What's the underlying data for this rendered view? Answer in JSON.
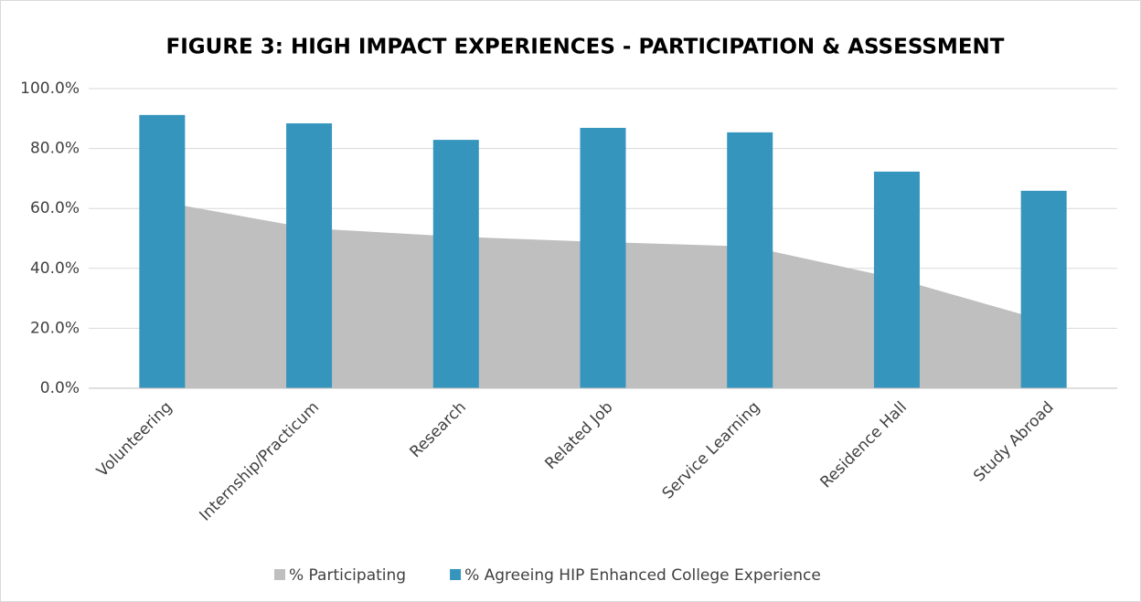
{
  "chart_data": {
    "type": "bar-area",
    "title": "FIGURE 3: HIGH IMPACT EXPERIENCES - PARTICIPATION & ASSESSMENT",
    "categories": [
      "Volunteering",
      "Internship/Practicum",
      "Research",
      "Related Job",
      "Service Learning",
      "Residence Hall",
      "Study Abroad"
    ],
    "series": [
      {
        "name": "% Participating",
        "color": "#bfbfbf",
        "kind": "area",
        "values": [
          62.2,
          53.4,
          50.6,
          48.8,
          47.3,
          36.6,
          22.6
        ]
      },
      {
        "name": "% Agreeing HIP Enhanced College Experience",
        "color": "#3595bd",
        "kind": "bar",
        "values": [
          91.2,
          88.4,
          82.9,
          86.9,
          85.4,
          72.3,
          65.9
        ]
      }
    ],
    "ylim": [
      0,
      100
    ],
    "yticks": [
      {
        "value": 0,
        "label": "0.0%"
      },
      {
        "value": 20,
        "label": "20.0%"
      },
      {
        "value": 40,
        "label": "40.0%"
      },
      {
        "value": 60,
        "label": "60.0%"
      },
      {
        "value": 80,
        "label": "80.0%"
      },
      {
        "value": 100,
        "label": "100.0%"
      }
    ],
    "grid": true,
    "legend": "bottom"
  }
}
